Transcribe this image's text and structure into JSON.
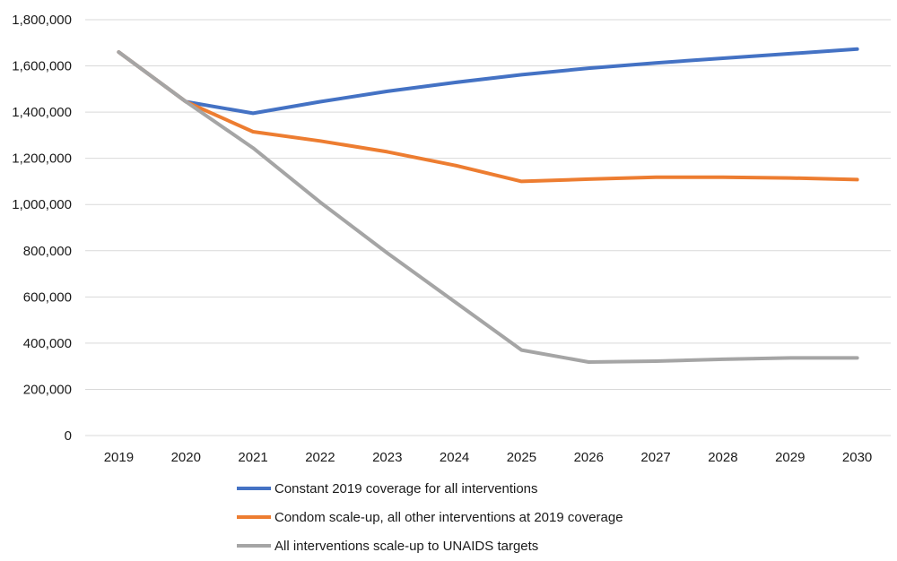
{
  "chart_data": {
    "type": "line",
    "title": "",
    "xlabel": "",
    "ylabel": "",
    "x": [
      "2019",
      "2020",
      "2021",
      "2022",
      "2023",
      "2024",
      "2025",
      "2026",
      "2027",
      "2028",
      "2029",
      "2030"
    ],
    "ylim": [
      0,
      1800000
    ],
    "yticks": [
      0,
      200000,
      400000,
      600000,
      800000,
      1000000,
      1200000,
      1400000,
      1600000,
      1800000
    ],
    "ytick_labels": [
      "0",
      "200,000",
      "400,000",
      "600,000",
      "800,000",
      "1,000,000",
      "1,200,000",
      "1,400,000",
      "1,600,000",
      "1,800,000"
    ],
    "grid": "horizontal",
    "legend_position": "bottom",
    "series": [
      {
        "name": "Constant 2019 coverage for all interventions",
        "color": "#4472C4",
        "values": [
          1660000,
          1445000,
          1395000,
          1445000,
          1490000,
          1528000,
          1562000,
          1590000,
          1613000,
          1633000,
          1653000,
          1673000
        ]
      },
      {
        "name": "Condom scale-up, all other interventions at 2019 coverage",
        "color": "#ED7D31",
        "values": [
          1660000,
          1445000,
          1315000,
          1275000,
          1228000,
          1170000,
          1100000,
          1110000,
          1118000,
          1118000,
          1115000,
          1108000
        ]
      },
      {
        "name": "All interventions scale-up to UNAIDS targets",
        "color": "#A5A5A5",
        "values": [
          1660000,
          1445000,
          1245000,
          1010000,
          790000,
          580000,
          370000,
          318000,
          322000,
          330000,
          336000,
          336000
        ]
      }
    ]
  }
}
